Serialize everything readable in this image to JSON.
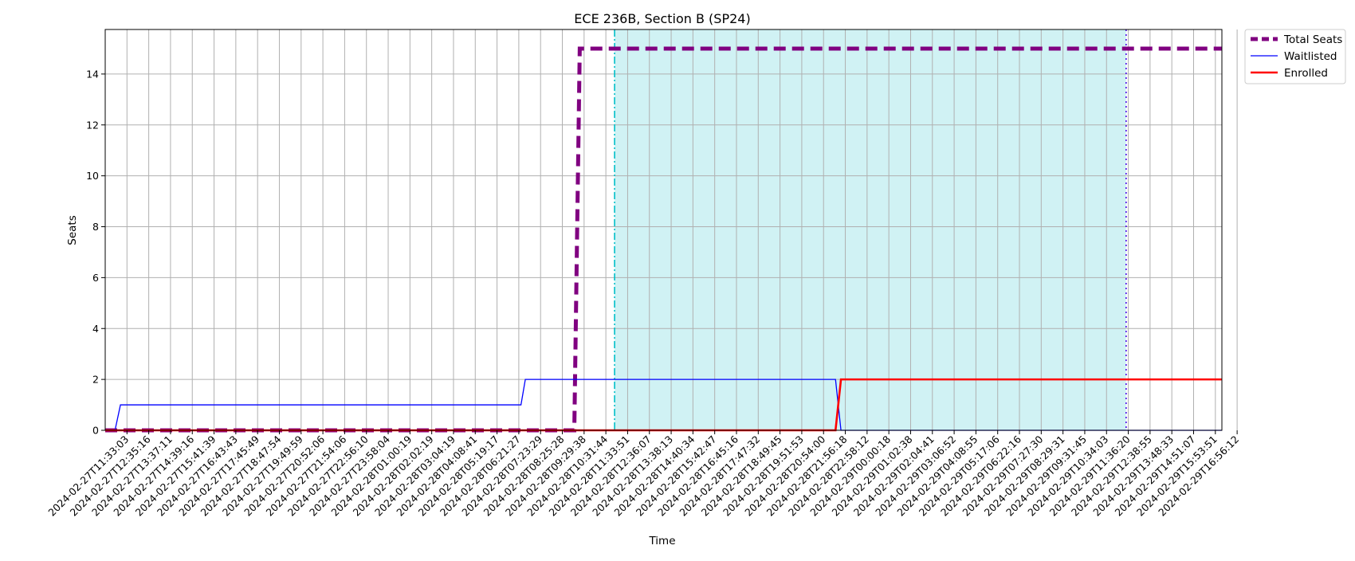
{
  "chart_data": {
    "type": "line",
    "title": "ECE 236B, Section B (SP24)",
    "xlabel": "Time",
    "ylabel": "Seats",
    "ylim": [
      0,
      15.75
    ],
    "yticks": [
      0,
      2,
      4,
      6,
      8,
      10,
      12,
      14
    ],
    "grid": true,
    "legend_position": "outside-top-right",
    "x_tick_labels": [
      "2024-02-27T11:33:03",
      "2024-02-27T12:35:16",
      "2024-02-27T13:37:11",
      "2024-02-27T14:39:16",
      "2024-02-27T15:41:39",
      "2024-02-27T16:43:43",
      "2024-02-27T17:45:49",
      "2024-02-27T18:47:54",
      "2024-02-27T19:49:59",
      "2024-02-27T20:52:06",
      "2024-02-27T21:54:06",
      "2024-02-27T22:56:10",
      "2024-02-27T23:58:04",
      "2024-02-28T01:00:19",
      "2024-02-28T02:02:19",
      "2024-02-28T03:04:19",
      "2024-02-28T04:08:41",
      "2024-02-28T05:19:17",
      "2024-02-28T06:21:27",
      "2024-02-28T07:23:29",
      "2024-02-28T08:25:28",
      "2024-02-28T09:29:38",
      "2024-02-28T10:31:44",
      "2024-02-28T11:33:51",
      "2024-02-28T12:36:07",
      "2024-02-28T13:38:13",
      "2024-02-28T14:40:34",
      "2024-02-28T15:42:47",
      "2024-02-28T16:45:16",
      "2024-02-28T17:47:32",
      "2024-02-28T18:49:45",
      "2024-02-28T19:51:53",
      "2024-02-28T20:54:00",
      "2024-02-28T21:56:18",
      "2024-02-28T22:58:12",
      "2024-02-29T00:00:18",
      "2024-02-29T01:02:38",
      "2024-02-29T02:04:41",
      "2024-02-29T03:06:52",
      "2024-02-29T04:08:55",
      "2024-02-29T05:17:06",
      "2024-02-29T06:22:16",
      "2024-02-29T07:27:30",
      "2024-02-29T08:29:31",
      "2024-02-29T09:31:45",
      "2024-02-29T10:34:03",
      "2024-02-29T11:36:20",
      "2024-02-29T12:38:55",
      "2024-02-29T13:48:33",
      "2024-02-29T14:51:07",
      "2024-02-29T15:53:51",
      "2024-02-29T16:56:12"
    ],
    "x_range": [
      -1.0,
      50.3
    ],
    "series": [
      {
        "name": "Total Seats",
        "color": "#800080",
        "style": "dashed-thick",
        "points": [
          [
            -1.0,
            0
          ],
          [
            20.55,
            0
          ],
          [
            20.8,
            15
          ],
          [
            50.3,
            15
          ]
        ]
      },
      {
        "name": "Waitlisted",
        "color": "#0000ff",
        "style": "solid-thin",
        "points": [
          [
            -1.0,
            0
          ],
          [
            -0.55,
            0
          ],
          [
            -0.3,
            1
          ],
          [
            18.1,
            1
          ],
          [
            18.3,
            2
          ],
          [
            32.55,
            2
          ],
          [
            32.8,
            0
          ],
          [
            50.3,
            0
          ]
        ]
      },
      {
        "name": "Enrolled",
        "color": "#ff0000",
        "style": "solid-thick",
        "points": [
          [
            -1.0,
            0
          ],
          [
            32.55,
            0
          ],
          [
            32.8,
            2
          ],
          [
            50.3,
            2
          ]
        ]
      }
    ],
    "shaded_region": {
      "x_start": 22.4,
      "x_end": 45.9,
      "color": "#d0f2f4"
    },
    "vertical_lines": [
      {
        "x": 22.4,
        "color": "#00bfc8",
        "style": "dashdot"
      },
      {
        "x": 45.9,
        "color": "#4b0ae8",
        "style": "dotted"
      }
    ]
  }
}
